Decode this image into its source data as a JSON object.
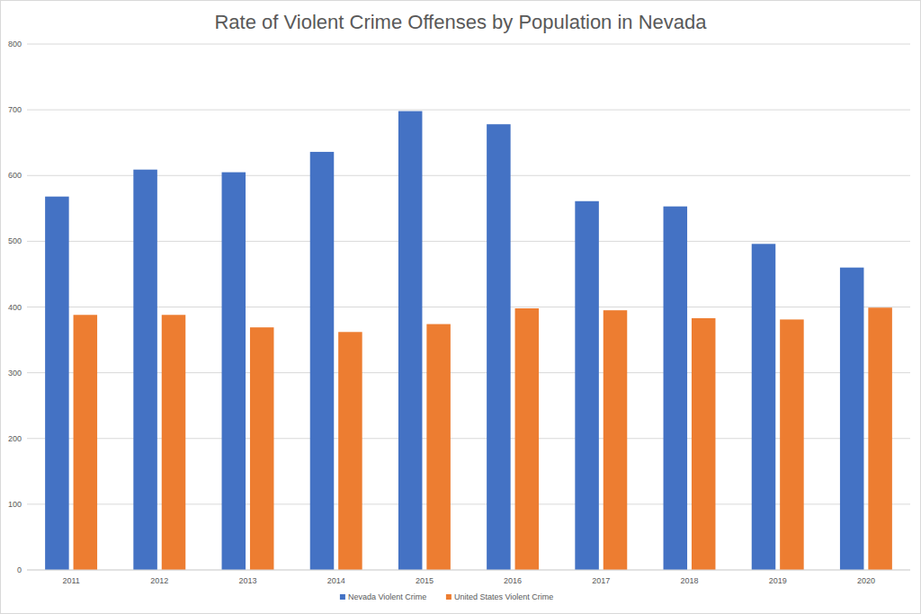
{
  "chart_data": {
    "type": "bar",
    "title": "Rate of Violent Crime Offenses by Population in Nevada",
    "categories": [
      "2011",
      "2012",
      "2013",
      "2014",
      "2015",
      "2016",
      "2017",
      "2018",
      "2019",
      "2020"
    ],
    "series": [
      {
        "name": "Nevada Violent Crime",
        "color": "#4472c4",
        "values": [
          568,
          609,
          605,
          636,
          698,
          678,
          561,
          553,
          496,
          460
        ]
      },
      {
        "name": "United States Violent Crime",
        "color": "#ed7d31",
        "values": [
          388,
          388,
          369,
          362,
          374,
          398,
          395,
          383,
          381,
          399
        ]
      }
    ],
    "ylim": [
      0,
      800
    ],
    "yticks": [
      0,
      100,
      200,
      300,
      400,
      500,
      600,
      700,
      800
    ],
    "grid": true,
    "legend": "bottom"
  }
}
